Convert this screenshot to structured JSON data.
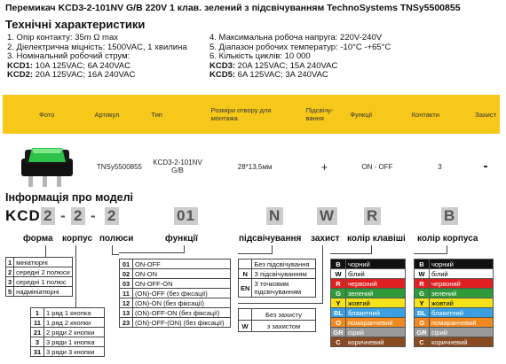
{
  "title": "Перемикач KCD3-2-101NV G/B 220V 1 клав. зелений з підсвічуванням TechnoSystems TNSy5500855",
  "specs_heading": "Технічні характеристики",
  "specs_left": [
    "1. Опір контакту: 35m Ω  max",
    "2. Діелектрична міцність:  1500VAC, 1 хвилина",
    "3. Номінальний робочий струм:"
  ],
  "specs_right": [
    "4. Максимальна робоча напруга: 220V-240V",
    "5. Діапазон робочих температур: -10°C -+65°C",
    "6. Кількість циклів: 10 000"
  ],
  "currents_left": [
    {
      "k": "KCD1:",
      "v": " 10A 125VAC; 6A 240VAC"
    },
    {
      "k": "KCD2:",
      "v": " 20A 125VAC; 16A 240VAC"
    }
  ],
  "currents_right": [
    {
      "k": "KCD3:",
      "v": " 20A 125VAC; 15A 240VAC"
    },
    {
      "k": "KCD5:",
      "v": " 6A 125VAC; 3A 240VAC"
    }
  ],
  "table": {
    "headers": [
      "Фото",
      "Артикул",
      "Тип",
      "Розміри отвору для монтажа",
      "Підсвічу-вання",
      "Функції",
      "Контакти",
      "Захист"
    ],
    "row": [
      "TNSy5500855",
      "KCD3-2-101NV G/B",
      "28*13,5мм",
      "+",
      "ON - OFF",
      "3",
      "-"
    ]
  },
  "model_heading": "Інформація про моделі",
  "code": {
    "prefix": "KCD",
    "c1": "2",
    "c2": "2",
    "c3": "2",
    "c4": "01",
    "c5": "N",
    "c6": "W",
    "c7": "R",
    "c8": "B"
  },
  "labels": {
    "forma": "форма",
    "korpus": "корпус",
    "polusy": "полюси",
    "funktsii": "функції",
    "pidsv": "підсвічування",
    "zakhyst": "захист",
    "kolir_klav": "колір клавіші",
    "kolir_korp": "колір корпуса"
  },
  "forma_rows": [
    {
      "k": "1",
      "v": "мініатюрні"
    },
    {
      "k": "2",
      "v": "середні 2 полюси"
    },
    {
      "k": "3",
      "v": "середні 1 полюс"
    },
    {
      "k": "5",
      "v": "надмініатюрні"
    }
  ],
  "polus_rows": [
    {
      "k": "1",
      "v": "1 ряд 1 кнопка"
    },
    {
      "k": "11",
      "v": "1 ряд 2 кнопки"
    },
    {
      "k": "21",
      "v": "2 ряди 2 кнопки"
    },
    {
      "k": "3",
      "v": "3 ряди 1 кнопка"
    },
    {
      "k": "31",
      "v": "3 ряди 3 кнопки"
    }
  ],
  "func_rows": [
    {
      "k": "01",
      "v": "ON-OFF"
    },
    {
      "k": "02",
      "v": "ON-ON"
    },
    {
      "k": "03",
      "v": "ON-OFF-ON"
    },
    {
      "k": "11",
      "v": "(ON)-OFF (без фіксації)"
    },
    {
      "k": "12",
      "v": "(ON)-ON (без фіксації)"
    },
    {
      "k": "13",
      "v": "(ON)-OFF-ON (без фіксації)"
    },
    {
      "k": "23",
      "v": "(ON)-OFF-(ON) (без фіксації)"
    }
  ],
  "light_rows": [
    {
      "k": "",
      "v": "Без підсвічування"
    },
    {
      "k": "N",
      "v": "З підсвічуванням"
    },
    {
      "k": "EN",
      "v": "З точковим підсвічуванням"
    }
  ],
  "prot_rows": [
    {
      "k": "",
      "v": "Без захисту"
    },
    {
      "k": "W",
      "v": "з захистом"
    }
  ],
  "colors_key": [
    {
      "k": "B",
      "v": "чорний",
      "c": "#111111",
      "t": "#ffffff"
    },
    {
      "k": "W",
      "v": "білий",
      "c": "#ffffff",
      "t": "#000000"
    },
    {
      "k": "R",
      "v": "червоний",
      "c": "#e02020",
      "t": "#ffffff"
    },
    {
      "k": "G",
      "v": "зелений",
      "c": "#2f9a3a",
      "t": "#ffffff"
    },
    {
      "k": "Y",
      "v": "жовтий",
      "c": "#f4e21a",
      "t": "#000000"
    },
    {
      "k": "BL",
      "v": "блакитний",
      "c": "#3aa0e0",
      "t": "#ffffff"
    },
    {
      "k": "O",
      "v": "помаранчевий",
      "c": "#f08a20",
      "t": "#ffffff"
    },
    {
      "k": "GR",
      "v": "сірий",
      "c": "#9a9a9a",
      "t": "#ffffff"
    },
    {
      "k": "C",
      "v": "коричневий",
      "c": "#8a4a22",
      "t": "#ffffff"
    }
  ],
  "colors_body": [
    {
      "k": "B",
      "v": "чорний",
      "c": "#111111",
      "t": "#ffffff"
    },
    {
      "k": "W",
      "v": "білий",
      "c": "#ffffff",
      "t": "#000000"
    },
    {
      "k": "R",
      "v": "червоний",
      "c": "#e02020",
      "t": "#ffffff"
    },
    {
      "k": "G",
      "v": "зелений",
      "c": "#2f9a3a",
      "t": "#ffffff"
    },
    {
      "k": "Y",
      "v": "жовтий",
      "c": "#f4e21a",
      "t": "#000000"
    },
    {
      "k": "BL",
      "v": "блакитний",
      "c": "#3aa0e0",
      "t": "#ffffff"
    },
    {
      "k": "O",
      "v": "помаранчевий",
      "c": "#f08a20",
      "t": "#ffffff"
    },
    {
      "k": "GR",
      "v": "сірий",
      "c": "#9a9a9a",
      "t": "#ffffff"
    },
    {
      "k": "C",
      "v": "коричневий",
      "c": "#8a4a22",
      "t": "#ffffff"
    }
  ]
}
